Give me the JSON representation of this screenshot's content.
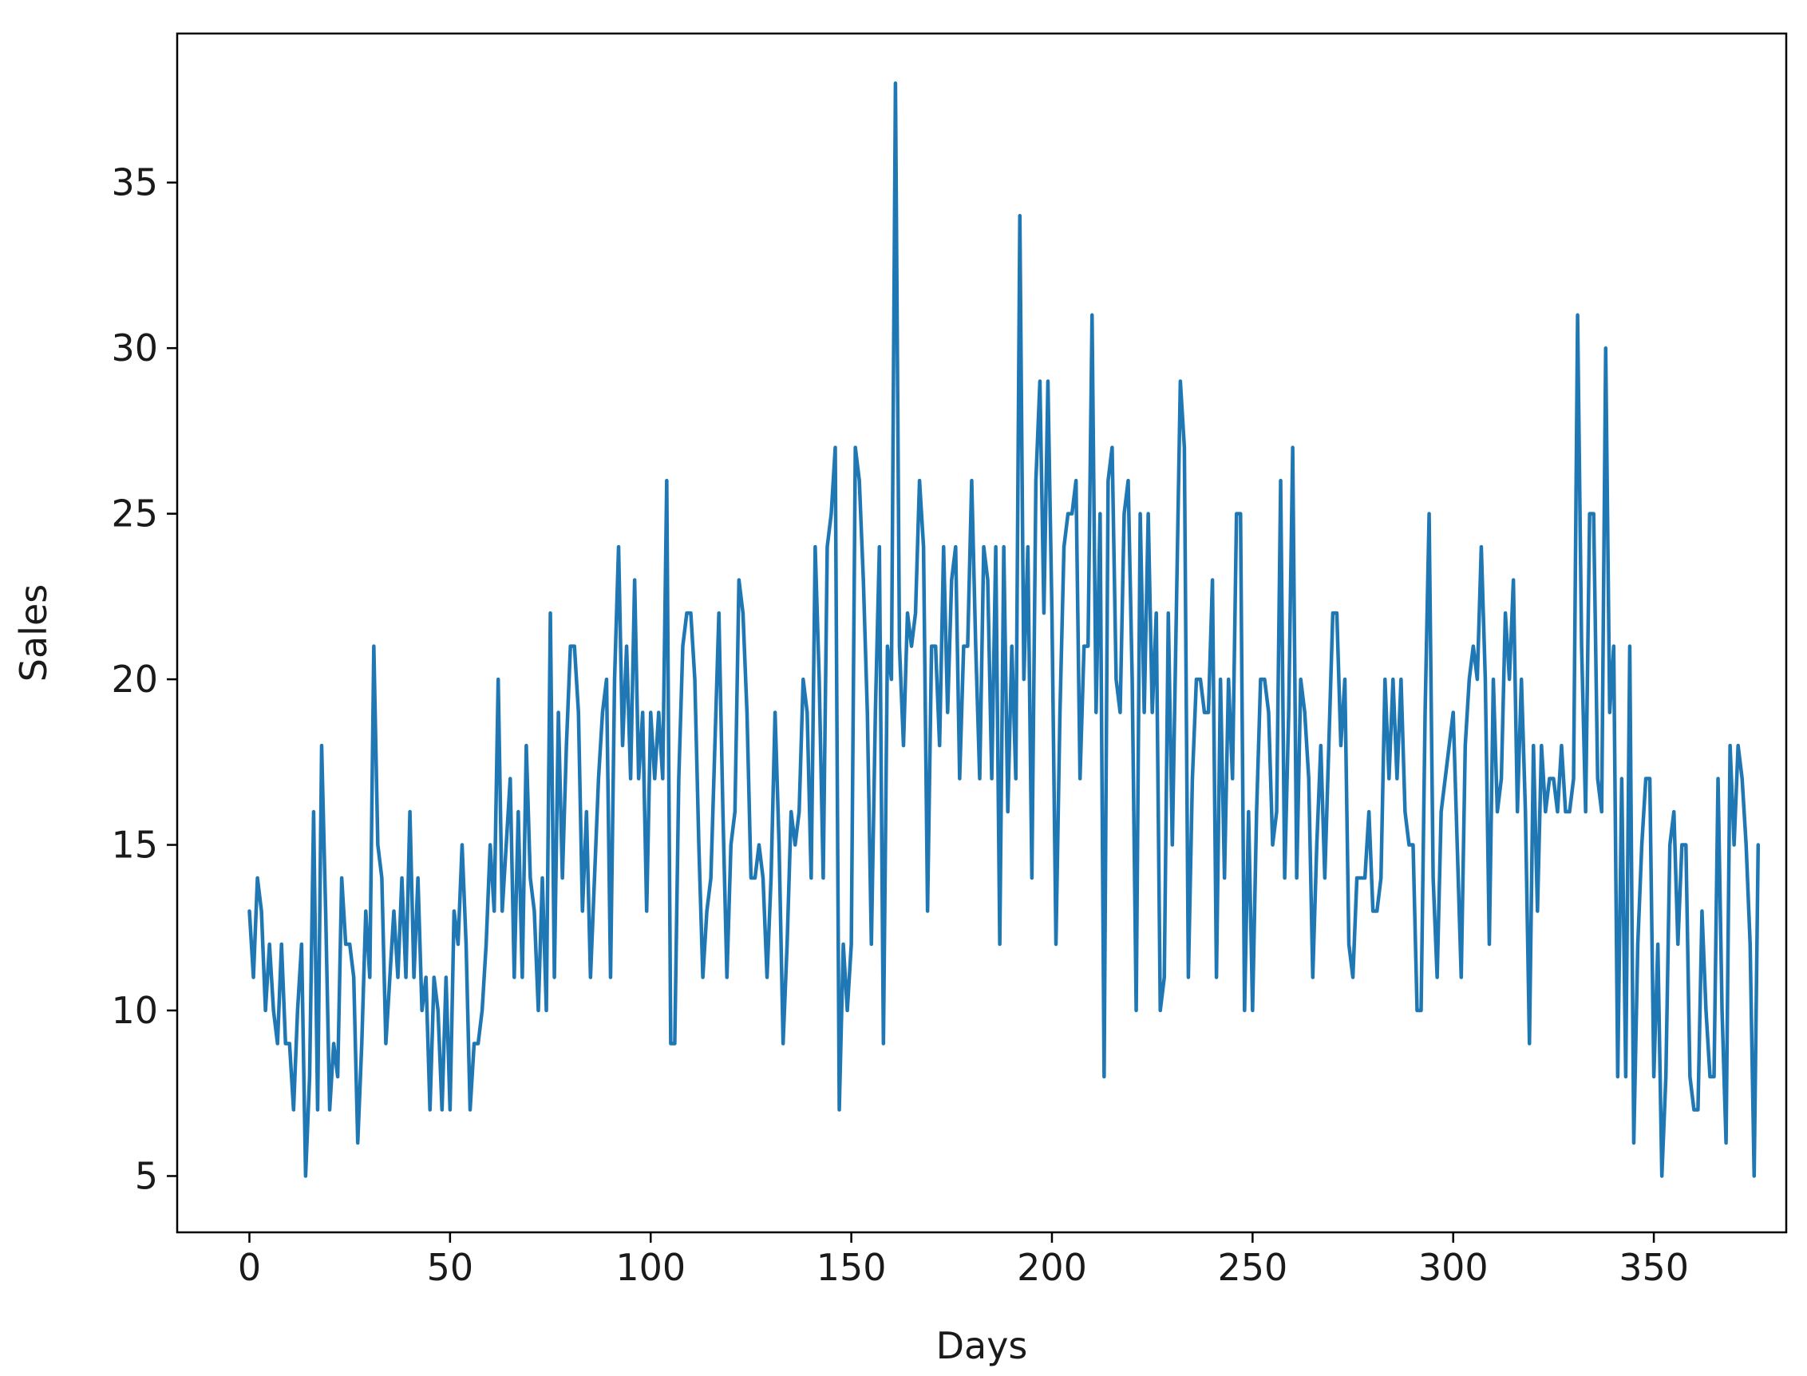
{
  "chart_data": {
    "type": "line",
    "title": "",
    "xlabel": "Days",
    "ylabel": "Sales",
    "xlim": [
      -18,
      383
    ],
    "ylim": [
      3.3,
      39.5
    ],
    "xticks": [
      0,
      50,
      100,
      150,
      200,
      250,
      300,
      350
    ],
    "yticks": [
      5,
      10,
      15,
      20,
      25,
      30,
      35
    ],
    "grid": false,
    "legend": "none",
    "line_color": "#1f77b4",
    "series": [
      {
        "values": [
          13,
          11,
          14,
          13,
          10,
          12,
          10,
          9,
          12,
          9,
          9,
          7,
          10,
          12,
          5,
          8,
          16,
          7,
          18,
          13,
          7,
          9,
          8,
          14,
          12,
          12,
          11,
          6,
          9,
          13,
          11,
          21,
          15,
          14,
          9,
          11,
          13,
          11,
          14,
          11,
          16,
          11,
          14,
          10,
          11,
          7,
          11,
          10,
          7,
          11,
          7,
          13,
          12,
          15,
          12,
          7,
          9,
          9,
          10,
          12,
          15,
          13,
          20,
          13,
          15,
          17,
          11,
          16,
          11,
          18,
          14,
          13,
          10,
          14,
          10,
          22,
          11,
          19,
          14,
          18,
          21,
          21,
          19,
          13,
          16,
          11,
          14,
          17,
          19,
          20,
          11,
          20,
          24,
          18,
          21,
          17,
          23,
          17,
          19,
          13,
          19,
          17,
          19,
          17,
          26,
          9,
          9,
          17,
          21,
          22,
          22,
          20,
          15,
          11,
          13,
          14,
          18,
          22,
          16,
          11,
          15,
          16,
          23,
          22,
          19,
          14,
          14,
          15,
          14,
          11,
          14,
          19,
          15,
          9,
          12,
          16,
          15,
          16,
          20,
          19,
          14,
          24,
          20,
          14,
          24,
          25,
          27,
          7,
          12,
          10,
          12,
          27,
          26,
          23,
          19,
          12,
          19,
          24,
          9,
          21,
          20,
          38,
          21,
          18,
          22,
          21,
          22,
          26,
          24,
          13,
          21,
          21,
          18,
          24,
          19,
          23,
          24,
          17,
          21,
          21,
          26,
          21,
          17,
          24,
          23,
          17,
          24,
          12,
          24,
          16,
          21,
          17,
          34,
          20,
          24,
          14,
          26,
          29,
          22,
          29,
          22,
          12,
          19,
          24,
          25,
          25,
          26,
          17,
          21,
          21,
          31,
          19,
          25,
          8,
          26,
          27,
          20,
          19,
          25,
          26,
          20,
          10,
          25,
          19,
          25,
          19,
          22,
          10,
          11,
          22,
          15,
          22,
          29,
          27,
          11,
          17,
          20,
          20,
          19,
          19,
          23,
          11,
          20,
          14,
          20,
          17,
          25,
          25,
          10,
          16,
          10,
          16,
          20,
          20,
          19,
          15,
          16,
          26,
          14,
          19,
          27,
          14,
          20,
          19,
          17,
          11,
          15,
          18,
          14,
          18,
          22,
          22,
          18,
          20,
          12,
          11,
          14,
          14,
          14,
          16,
          13,
          13,
          14,
          20,
          17,
          20,
          17,
          20,
          16,
          15,
          15,
          10,
          10,
          19,
          25,
          14,
          11,
          16,
          17,
          18,
          19,
          15,
          11,
          18,
          20,
          21,
          20,
          24,
          20,
          12,
          20,
          16,
          17,
          22,
          20,
          23,
          16,
          20,
          16,
          9,
          18,
          13,
          18,
          16,
          17,
          17,
          16,
          18,
          16,
          16,
          17,
          31,
          21,
          16,
          25,
          25,
          17,
          16,
          30,
          19,
          21,
          8,
          17,
          8,
          21,
          6,
          12,
          15,
          17,
          17,
          8,
          12,
          5,
          8,
          15,
          16,
          12,
          15,
          15,
          8,
          7,
          7,
          13,
          10,
          8,
          8,
          17,
          10,
          6,
          18,
          15,
          18,
          17,
          15,
          12,
          5,
          15
        ]
      }
    ]
  }
}
